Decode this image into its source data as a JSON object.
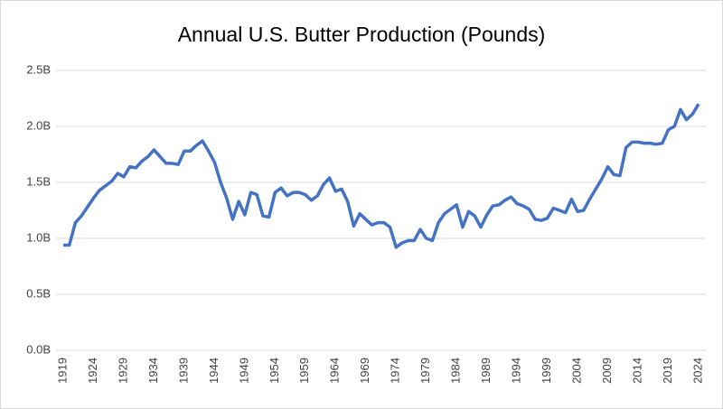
{
  "chart_data": {
    "type": "line",
    "title": "Annual U.S. Butter Production (Pounds)",
    "x": [
      1919,
      1920,
      1921,
      1922,
      1923,
      1924,
      1925,
      1926,
      1927,
      1928,
      1929,
      1930,
      1931,
      1932,
      1933,
      1934,
      1935,
      1936,
      1937,
      1938,
      1939,
      1940,
      1941,
      1942,
      1943,
      1944,
      1945,
      1946,
      1947,
      1948,
      1949,
      1950,
      1951,
      1952,
      1953,
      1954,
      1955,
      1956,
      1957,
      1958,
      1959,
      1960,
      1961,
      1962,
      1963,
      1964,
      1965,
      1966,
      1967,
      1968,
      1969,
      1970,
      1971,
      1972,
      1973,
      1974,
      1975,
      1976,
      1977,
      1978,
      1979,
      1980,
      1981,
      1982,
      1983,
      1984,
      1985,
      1986,
      1987,
      1988,
      1989,
      1990,
      1991,
      1992,
      1993,
      1994,
      1995,
      1996,
      1997,
      1998,
      1999,
      2000,
      2001,
      2002,
      2003,
      2004,
      2005,
      2006,
      2007,
      2008,
      2009,
      2010,
      2011,
      2012,
      2013,
      2014,
      2015,
      2016,
      2017,
      2018,
      2019,
      2020,
      2021,
      2022,
      2023,
      2024
    ],
    "series": [
      {
        "color": "#4472c4",
        "values": [
          0.94,
          0.94,
          1.14,
          1.2,
          1.28,
          1.36,
          1.43,
          1.47,
          1.51,
          1.58,
          1.55,
          1.64,
          1.63,
          1.69,
          1.73,
          1.79,
          1.73,
          1.67,
          1.67,
          1.66,
          1.78,
          1.78,
          1.83,
          1.87,
          1.78,
          1.68,
          1.5,
          1.36,
          1.17,
          1.33,
          1.21,
          1.41,
          1.39,
          1.2,
          1.19,
          1.41,
          1.45,
          1.38,
          1.41,
          1.41,
          1.39,
          1.34,
          1.38,
          1.48,
          1.54,
          1.42,
          1.44,
          1.33,
          1.11,
          1.22,
          1.17,
          1.12,
          1.14,
          1.14,
          1.1,
          0.92,
          0.96,
          0.98,
          0.98,
          1.08,
          1.0,
          0.98,
          1.14,
          1.22,
          1.26,
          1.3,
          1.1,
          1.24,
          1.2,
          1.1,
          1.21,
          1.29,
          1.3,
          1.34,
          1.37,
          1.31,
          1.29,
          1.26,
          1.17,
          1.16,
          1.18,
          1.27,
          1.25,
          1.23,
          1.35,
          1.24,
          1.25,
          1.35,
          1.44,
          1.53,
          1.64,
          1.57,
          1.56,
          1.81,
          1.86,
          1.86,
          1.85,
          1.85,
          1.84,
          1.85,
          1.97,
          2.0,
          2.15,
          2.06,
          2.11,
          2.2
        ]
      }
    ],
    "xlim": [
      1919,
      2024
    ],
    "xticks": [
      1919,
      1924,
      1929,
      1934,
      1939,
      1944,
      1949,
      1954,
      1959,
      1964,
      1969,
      1974,
      1979,
      1984,
      1989,
      1994,
      1999,
      2004,
      2009,
      2014,
      2019,
      2024
    ],
    "ylim": [
      0,
      2.5
    ],
    "yticks": [
      {
        "value": 0,
        "label": "0.0B"
      },
      {
        "value": 0.5,
        "label": "0.5B"
      },
      {
        "value": 1,
        "label": "1.0B"
      },
      {
        "value": 1.5,
        "label": "1.5B"
      },
      {
        "value": 2,
        "label": "2.0B"
      },
      {
        "value": 2.5,
        "label": "2.5B"
      }
    ],
    "grid": true
  }
}
